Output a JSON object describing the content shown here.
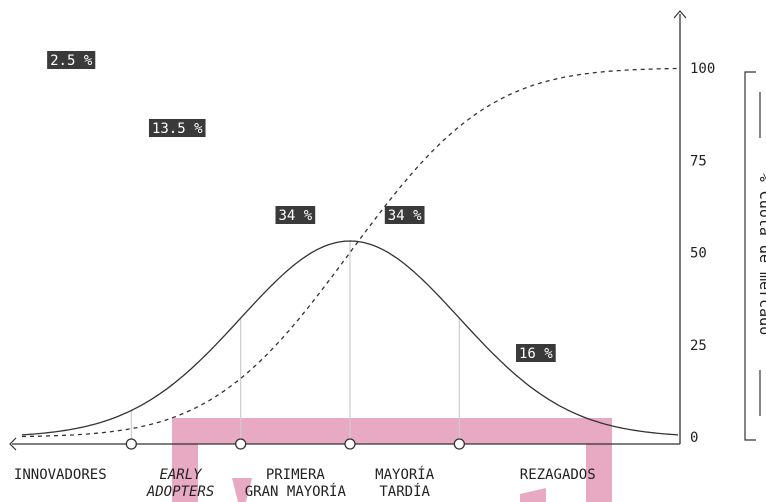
{
  "chart_data": {
    "type": "line",
    "title": "",
    "ylabel": "% Cuota de mercado",
    "xlabel": "",
    "ylim": [
      0,
      100
    ],
    "yticks": [
      "0",
      "25",
      "50",
      "75",
      "100"
    ],
    "grid": false,
    "x_range_sd": [
      -3,
      3
    ],
    "segment_boundaries_sd": [
      -2,
      -1,
      0,
      1
    ],
    "categories": [
      {
        "lines": [
          "INNOVADORES"
        ],
        "italic": false
      },
      {
        "lines": [
          "EARLY",
          "ADOPTERS"
        ],
        "italic": true
      },
      {
        "lines": [
          "PRIMERA",
          "GRAN MAYORÍA"
        ],
        "italic": false
      },
      {
        "lines": [
          "MAYORÍA",
          "TARDÍA"
        ],
        "italic": false
      },
      {
        "lines": [
          "REZAGADOS"
        ],
        "italic": false
      }
    ],
    "segment_shares": [
      "2.5 %",
      "13.5 %",
      "34 %",
      "34 %",
      "16 %"
    ],
    "series": [
      {
        "kind": "adoption",
        "style": "solid",
        "shape": "normal distribution"
      },
      {
        "kind": "market share",
        "style": "dashed",
        "shape": "cumulative"
      }
    ],
    "colors": {
      "line": "#333333",
      "label_bg": "#3a3a3a",
      "boundary": "#cccccc",
      "watermark": "#e8a9c2"
    }
  }
}
